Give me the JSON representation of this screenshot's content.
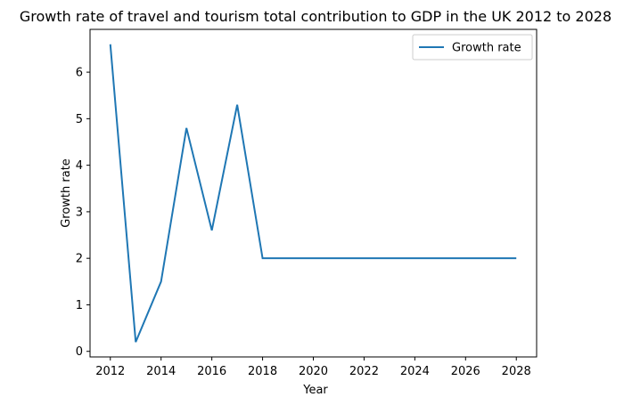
{
  "chart_data": {
    "type": "line",
    "title": "Growth rate of travel and tourism total contribution to GDP in the UK 2012 to 2028",
    "xlabel": "Year",
    "ylabel": "Growth rate",
    "x": [
      2012,
      2013,
      2014,
      2015,
      2016,
      2017,
      2018,
      2019,
      2020,
      2021,
      2022,
      2023,
      2024,
      2025,
      2026,
      2027,
      2028
    ],
    "series": [
      {
        "name": "Growth rate",
        "color": "#1f77b4",
        "values": [
          6.6,
          0.2,
          1.5,
          4.8,
          2.6,
          5.3,
          2.0,
          2.0,
          2.0,
          2.0,
          2.0,
          2.0,
          2.0,
          2.0,
          2.0,
          2.0,
          2.0
        ]
      }
    ],
    "xticks": [
      "2012",
      "2014",
      "2016",
      "2018",
      "2020",
      "2022",
      "2024",
      "2026",
      "2028"
    ],
    "yticks": [
      "0",
      "1",
      "2",
      "3",
      "4",
      "5",
      "6"
    ],
    "xlim": [
      2011.2,
      2028.8
    ],
    "ylim": [
      -0.12,
      6.92
    ],
    "grid": false,
    "legend_position": "upper right"
  }
}
